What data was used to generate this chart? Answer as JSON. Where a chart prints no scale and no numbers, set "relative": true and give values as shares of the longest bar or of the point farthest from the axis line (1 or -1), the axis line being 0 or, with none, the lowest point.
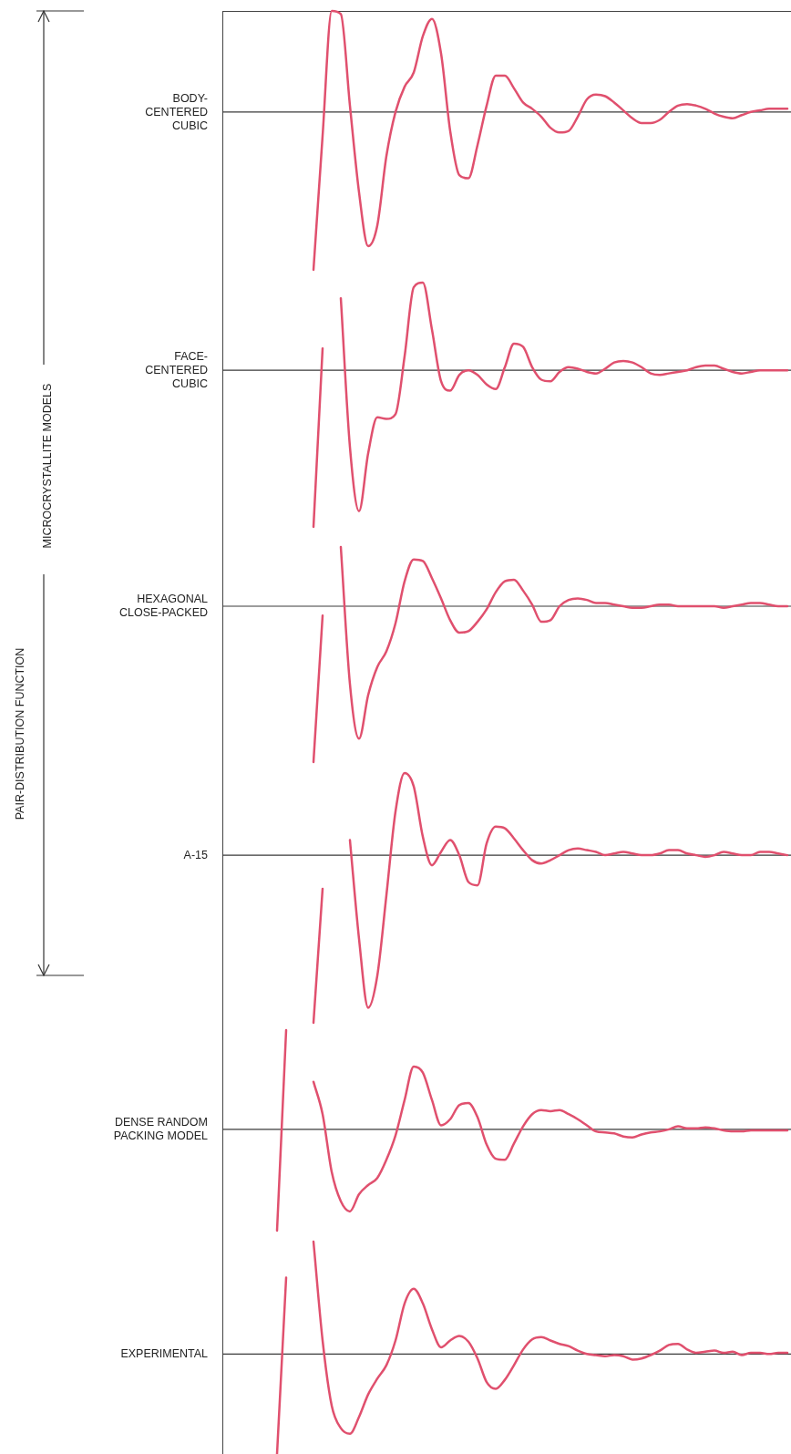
{
  "chart_data": [
    {
      "type": "line",
      "relative": true,
      "categories": [
        null,
        null,
        null,
        null,
        null,
        null,
        null,
        null,
        null,
        null,
        null,
        null,
        null,
        null,
        null,
        null,
        null,
        null,
        null,
        null,
        null,
        null,
        null,
        null,
        null,
        null,
        null,
        null,
        null,
        null,
        null,
        null,
        null,
        null,
        null,
        null,
        null,
        null,
        null,
        null,
        null,
        null,
        null,
        null,
        null,
        null,
        null,
        null,
        null,
        null,
        null,
        null,
        null,
        null,
        null,
        null,
        null,
        null,
        null,
        null,
        null,
        null,
        null
      ],
      "series": [
        {
          "name": "BODY-CENTERED CUBIC",
          "color": "#e0506e",
          "values": [
            null,
            null,
            null,
            null,
            null,
            null,
            null,
            null,
            null,
            null,
            -1,
            -0.15,
            0.64,
            0.62,
            0.04,
            -0.51,
            -0.85,
            -0.72,
            -0.28,
            0,
            0.16,
            0.25,
            0.48,
            0.59,
            0.37,
            -0.12,
            -0.4,
            -0.42,
            -0.21,
            0.04,
            0.23,
            0.23,
            0.15,
            0.06,
            0.02,
            -0.03,
            -0.1,
            -0.13,
            -0.12,
            -0.03,
            0.08,
            0.11,
            0.1,
            0.06,
            0.01,
            -0.04,
            -0.07,
            -0.07,
            -0.05,
            0,
            0.04,
            0.05,
            0.04,
            0.02,
            -0.01,
            -0.03,
            -0.04,
            -0.02,
            0,
            0.01,
            0.02,
            0.02,
            0.02
          ]
        }
      ]
    },
    {
      "type": "line",
      "relative": true,
      "categories": [
        null,
        null,
        null,
        null,
        null,
        null,
        null,
        null,
        null,
        null,
        null,
        null,
        null,
        null,
        null,
        null,
        null,
        null,
        null,
        null,
        null,
        null,
        null,
        null,
        null,
        null,
        null,
        null,
        null,
        null,
        null,
        null,
        null,
        null,
        null,
        null,
        null,
        null,
        null,
        null,
        null,
        null,
        null,
        null,
        null,
        null,
        null,
        null,
        null,
        null,
        null,
        null,
        null,
        null,
        null,
        null,
        null,
        null,
        null,
        null,
        null,
        null,
        null
      ],
      "series": [
        {
          "name": "FACE-CENTERED CUBIC",
          "color": "#e0506e",
          "values": [
            null,
            null,
            null,
            null,
            null,
            null,
            null,
            null,
            null,
            null,
            -1,
            0.14,
            null,
            0.46,
            -0.49,
            -0.9,
            -0.53,
            -0.3,
            -0.31,
            -0.28,
            0.09,
            0.53,
            0.56,
            0.26,
            -0.07,
            -0.13,
            -0.03,
            0,
            -0.03,
            -0.09,
            -0.12,
            0.02,
            0.17,
            0.15,
            0.02,
            -0.06,
            -0.07,
            -0.01,
            0.02,
            0.01,
            -0.01,
            -0.02,
            0.01,
            0.05,
            0.06,
            0.05,
            0.02,
            -0.02,
            -0.03,
            -0.02,
            -0.01,
            0,
            0.02,
            0.03,
            0.03,
            0.01,
            -0.01,
            -0.02,
            -0.01,
            0,
            0,
            0,
            0
          ]
        }
      ]
    },
    {
      "type": "line",
      "relative": true,
      "categories": [
        null,
        null,
        null,
        null,
        null,
        null,
        null,
        null,
        null,
        null,
        null,
        null,
        null,
        null,
        null,
        null,
        null,
        null,
        null,
        null,
        null,
        null,
        null,
        null,
        null,
        null,
        null,
        null,
        null,
        null,
        null,
        null,
        null,
        null,
        null,
        null,
        null,
        null,
        null,
        null,
        null,
        null,
        null,
        null,
        null,
        null,
        null,
        null,
        null,
        null,
        null,
        null,
        null,
        null,
        null,
        null,
        null,
        null,
        null,
        null,
        null,
        null,
        null
      ],
      "series": [
        {
          "name": "HEXAGONAL CLOSE-PACKED",
          "color": "#e0506e",
          "values": [
            null,
            null,
            null,
            null,
            null,
            null,
            null,
            null,
            null,
            null,
            -1,
            -0.06,
            null,
            0.38,
            -0.5,
            -0.85,
            -0.57,
            -0.39,
            -0.29,
            -0.11,
            0.16,
            0.3,
            0.29,
            0.18,
            0.05,
            -0.09,
            -0.17,
            -0.16,
            -0.1,
            -0.02,
            0.09,
            0.16,
            0.17,
            0.1,
            0.01,
            -0.1,
            -0.09,
            0,
            0.04,
            0.05,
            0.04,
            0.02,
            0.02,
            0.01,
            0,
            -0.01,
            -0.01,
            0,
            0.01,
            0.01,
            0,
            0,
            0,
            0,
            0,
            -0.01,
            0,
            0.01,
            0.02,
            0.02,
            0.01,
            0,
            0
          ]
        }
      ]
    },
    {
      "type": "line",
      "relative": true,
      "categories": [
        null,
        null,
        null,
        null,
        null,
        null,
        null,
        null,
        null,
        null,
        null,
        null,
        null,
        null,
        null,
        null,
        null,
        null,
        null,
        null,
        null,
        null,
        null,
        null,
        null,
        null,
        null,
        null,
        null,
        null,
        null,
        null,
        null,
        null,
        null,
        null,
        null,
        null,
        null,
        null,
        null,
        null,
        null,
        null,
        null,
        null,
        null,
        null,
        null,
        null,
        null,
        null,
        null,
        null,
        null,
        null,
        null,
        null,
        null,
        null,
        null,
        null,
        null
      ],
      "series": [
        {
          "name": "A-15",
          "color": "#e0506e",
          "values": [
            null,
            null,
            null,
            null,
            null,
            null,
            null,
            null,
            null,
            null,
            -1,
            -0.2,
            null,
            null,
            0.09,
            -0.5,
            -0.91,
            -0.72,
            -0.24,
            0.26,
            0.49,
            0.41,
            0.11,
            -0.06,
            0.02,
            0.09,
            0,
            -0.16,
            -0.18,
            0.07,
            0.17,
            0.16,
            0.1,
            0.03,
            -0.03,
            -0.05,
            -0.03,
            0,
            0.03,
            0.04,
            0.03,
            0.02,
            0,
            0.01,
            0.02,
            0.01,
            0,
            0,
            0.01,
            0.03,
            0.03,
            0.01,
            0,
            -0.01,
            0,
            0.02,
            0.01,
            0,
            0,
            0.02,
            0.02,
            0.01,
            0
          ]
        }
      ]
    },
    {
      "type": "line",
      "relative": true,
      "categories": [
        null,
        null,
        null,
        null,
        null,
        null,
        null,
        null,
        null,
        null,
        null,
        null,
        null,
        null,
        null,
        null,
        null,
        null,
        null,
        null,
        null,
        null,
        null,
        null,
        null,
        null,
        null,
        null,
        null,
        null,
        null,
        null,
        null,
        null,
        null,
        null,
        null,
        null,
        null,
        null,
        null,
        null,
        null,
        null,
        null,
        null,
        null,
        null,
        null,
        null,
        null,
        null,
        null,
        null,
        null,
        null,
        null,
        null,
        null,
        null,
        null,
        null,
        null
      ],
      "series": [
        {
          "name": "DENSE RANDOM PACKING MODEL",
          "color": "#e0506e",
          "values": [
            null,
            null,
            null,
            null,
            null,
            null,
            -1,
            0.98,
            null,
            null,
            0.47,
            0.15,
            -0.42,
            -0.71,
            -0.81,
            -0.64,
            -0.55,
            -0.48,
            -0.3,
            -0.06,
            0.29,
            0.62,
            0.56,
            0.29,
            0.04,
            0.1,
            0.24,
            0.26,
            0.12,
            -0.15,
            -0.29,
            -0.3,
            -0.14,
            0.03,
            0.15,
            0.19,
            0.18,
            0.19,
            0.15,
            0.1,
            0.04,
            -0.02,
            -0.03,
            -0.04,
            -0.07,
            -0.08,
            -0.05,
            -0.03,
            -0.02,
            0,
            0.03,
            0.01,
            0.01,
            0.02,
            0.01,
            -0.01,
            -0.02,
            -0.02,
            -0.01,
            -0.01,
            -0.01,
            -0.01,
            -0.01
          ]
        }
      ]
    },
    {
      "type": "line",
      "relative": true,
      "categories": [
        null,
        null,
        null,
        null,
        null,
        null,
        null,
        null,
        null,
        null,
        null,
        null,
        null,
        null,
        null,
        null,
        null,
        null,
        null,
        null,
        null,
        null,
        null,
        null,
        null,
        null,
        null,
        null,
        null,
        null,
        null,
        null,
        null,
        null,
        null,
        null,
        null,
        null,
        null,
        null,
        null,
        null,
        null,
        null,
        null,
        null,
        null,
        null,
        null,
        null,
        null,
        null,
        null,
        null,
        null,
        null,
        null,
        null,
        null,
        null,
        null,
        null,
        null
      ],
      "series": [
        {
          "name": "EXPERIMENTAL",
          "color": "#e0506e",
          "values": [
            null,
            null,
            null,
            null,
            null,
            null,
            -0.89,
            0.68,
            null,
            null,
            1,
            0.12,
            -0.46,
            -0.66,
            -0.71,
            -0.56,
            -0.36,
            -0.22,
            -0.1,
            0.12,
            0.45,
            0.58,
            0.45,
            0.22,
            0.06,
            0.12,
            0.16,
            0.11,
            -0.04,
            -0.25,
            -0.31,
            -0.23,
            -0.1,
            0.04,
            0.13,
            0.15,
            0.12,
            0.09,
            0.07,
            0.03,
            0,
            -0.01,
            -0.02,
            -0.01,
            -0.02,
            -0.05,
            -0.04,
            -0.01,
            0.03,
            0.08,
            0.09,
            0.04,
            0.01,
            0.02,
            0.03,
            0.01,
            0.02,
            -0.01,
            0.01,
            0.01,
            0,
            0.01,
            0.01
          ]
        }
      ]
    },
    {
      "type": "other",
      "annotations": [
        "PAIR-DISTRIBUTION FUNCTION",
        "MICROCRYSTALLITE MODELS"
      ]
    }
  ]
}
